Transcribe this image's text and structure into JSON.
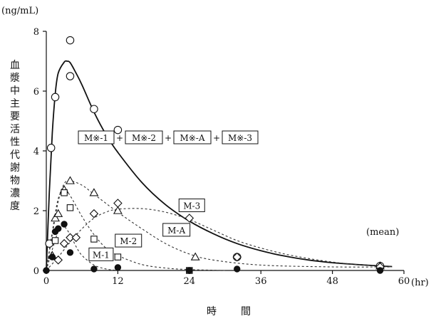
{
  "chart_data": {
    "type": "scatter",
    "y_unit": "(ng/mL)",
    "x_unit": "(hr)",
    "xlabel": "時　間",
    "ylabel": "血漿中主要活性代謝物濃度",
    "xlim": [
      0,
      60
    ],
    "ylim": [
      0,
      8
    ],
    "x_ticks": [
      0,
      12,
      24,
      36,
      48,
      60
    ],
    "y_ticks": [
      0,
      2,
      4,
      6,
      8
    ],
    "note": "(mean)",
    "series": [
      {
        "name": "M※-1＋M※-2＋M※-A＋M※-3",
        "marker": "circle-open",
        "x": [
          0.5,
          0.8,
          1.5,
          4,
          4,
          8,
          12,
          24,
          32,
          56
        ],
        "y": [
          0.9,
          4.1,
          5.8,
          7.7,
          6.5,
          5.4,
          4.7,
          2.15,
          0.45,
          0.15
        ],
        "fit": [
          [
            0,
            0
          ],
          [
            0.5,
            2.6
          ],
          [
            1,
            4.6
          ],
          [
            1.5,
            5.9
          ],
          [
            2,
            6.6
          ],
          [
            3,
            6.97
          ],
          [
            3.5,
            7.0
          ],
          [
            4,
            6.95
          ],
          [
            5,
            6.6
          ],
          [
            6,
            6.2
          ],
          [
            8,
            5.3
          ],
          [
            10,
            4.55
          ],
          [
            12,
            3.95
          ],
          [
            16,
            2.95
          ],
          [
            20,
            2.2
          ],
          [
            24,
            1.65
          ],
          [
            28,
            1.23
          ],
          [
            32,
            0.9
          ],
          [
            36,
            0.66
          ],
          [
            40,
            0.48
          ],
          [
            44,
            0.35
          ],
          [
            48,
            0.26
          ],
          [
            52,
            0.2
          ],
          [
            56,
            0.15
          ],
          [
            58,
            0.13
          ]
        ]
      },
      {
        "name": "M-A",
        "marker": "triangle-open",
        "x": [
          1,
          1.5,
          2,
          3,
          4,
          8,
          12,
          25,
          56
        ],
        "y": [
          0.5,
          1.75,
          1.9,
          2.7,
          3.0,
          2.6,
          2.0,
          0.45,
          0.15
        ],
        "fit": [
          [
            0,
            0
          ],
          [
            1,
            1.2
          ],
          [
            2,
            2.3
          ],
          [
            3,
            2.9
          ],
          [
            4,
            3.0
          ],
          [
            6,
            2.85
          ],
          [
            8,
            2.55
          ],
          [
            12,
            1.95
          ],
          [
            16,
            1.4
          ],
          [
            20,
            0.9
          ],
          [
            24,
            0.55
          ],
          [
            28,
            0.35
          ],
          [
            36,
            0.18
          ],
          [
            48,
            0.12
          ],
          [
            58,
            0.12
          ]
        ]
      },
      {
        "name": "M-3",
        "marker": "diamond-open",
        "x": [
          2,
          3,
          4,
          5,
          8,
          12,
          24,
          32,
          56
        ],
        "y": [
          0.35,
          0.9,
          1.1,
          1.1,
          1.9,
          2.25,
          1.75,
          0.45,
          0.12
        ],
        "fit": [
          [
            0,
            0
          ],
          [
            2,
            0.45
          ],
          [
            4,
            0.95
          ],
          [
            6,
            1.4
          ],
          [
            8,
            1.75
          ],
          [
            10,
            1.95
          ],
          [
            12,
            2.05
          ],
          [
            16,
            2.07
          ],
          [
            20,
            1.95
          ],
          [
            24,
            1.7
          ],
          [
            28,
            1.35
          ],
          [
            32,
            1.0
          ],
          [
            36,
            0.75
          ],
          [
            40,
            0.55
          ],
          [
            44,
            0.4
          ],
          [
            48,
            0.28
          ],
          [
            52,
            0.2
          ],
          [
            56,
            0.15
          ],
          [
            58,
            0.13
          ]
        ]
      },
      {
        "name": "M-2",
        "marker": "square-open",
        "x": [
          1.5,
          3,
          4,
          8,
          12,
          24
        ],
        "y": [
          1.0,
          2.6,
          2.1,
          1.05,
          0.45,
          0.0
        ],
        "fit": [
          [
            0,
            0
          ],
          [
            1,
            1.3
          ],
          [
            2,
            2.4
          ],
          [
            3,
            2.7
          ],
          [
            4,
            2.5
          ],
          [
            6,
            1.8
          ],
          [
            8,
            1.2
          ],
          [
            10,
            0.75
          ],
          [
            12,
            0.5
          ],
          [
            16,
            0.2
          ],
          [
            20,
            0.08
          ],
          [
            24,
            0.03
          ],
          [
            30,
            0.0
          ]
        ]
      },
      {
        "name": "M-1",
        "marker": "circle-filled",
        "x": [
          0,
          1,
          1.5,
          2,
          3,
          4,
          8,
          12,
          24,
          32,
          56
        ],
        "y": [
          0.0,
          0.45,
          1.3,
          1.4,
          1.55,
          0.6,
          0.05,
          0.1,
          0.0,
          0.05,
          0.0
        ],
        "fit": [
          [
            0,
            0
          ],
          [
            1,
            0.7
          ],
          [
            2,
            1.3
          ],
          [
            2.8,
            1.5
          ],
          [
            4,
            1.2
          ],
          [
            5,
            0.8
          ],
          [
            6,
            0.5
          ],
          [
            8,
            0.18
          ],
          [
            10,
            0.05
          ],
          [
            12,
            0.0
          ]
        ]
      }
    ],
    "annotations": [
      {
        "text": "M-3"
      },
      {
        "text": "M-A"
      },
      {
        "text": "M-2"
      },
      {
        "text": "M-1"
      }
    ],
    "legend_sum": [
      "M※-1",
      "M※-2",
      "M※-A",
      "M※-3"
    ]
  }
}
